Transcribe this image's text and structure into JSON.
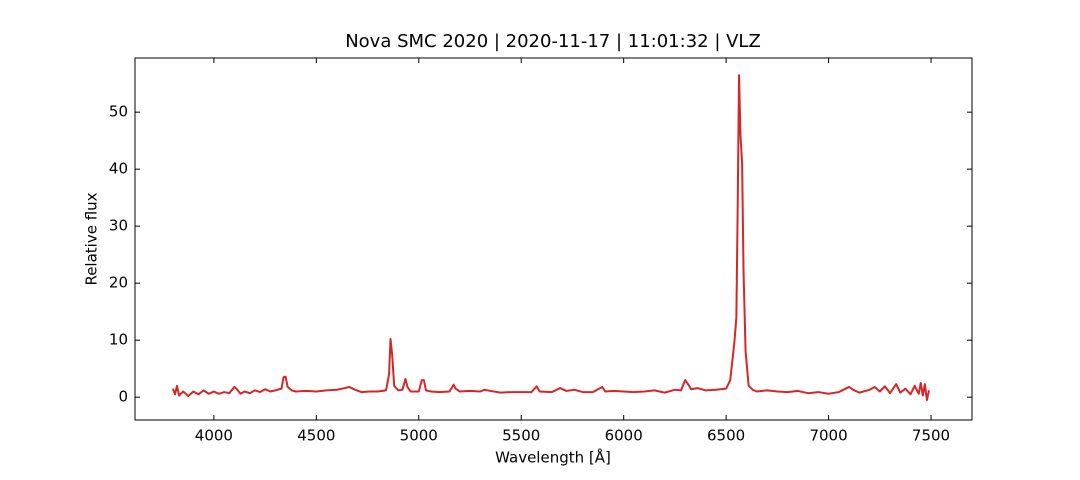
{
  "chart_data": {
    "type": "line",
    "title": "Nova SMC 2020 | 2020-11-17 | 11:01:32 | VLZ",
    "x_label": "Wavelength [Å]",
    "y_label": "Relative flux",
    "color": "#d62728",
    "xlim": [
      3615,
      7700
    ],
    "ylim": [
      -4,
      59.5
    ],
    "xticks": [
      4000,
      4500,
      5000,
      5500,
      6000,
      6500,
      7000,
      7500
    ],
    "yticks": [
      0,
      10,
      20,
      30,
      40,
      50
    ],
    "grid": false,
    "x": [
      3800,
      3810,
      3820,
      3830,
      3850,
      3875,
      3900,
      3925,
      3950,
      3975,
      4000,
      4025,
      4050,
      4075,
      4100,
      4110,
      4130,
      4150,
      4175,
      4200,
      4225,
      4250,
      4275,
      4300,
      4330,
      4340,
      4350,
      4360,
      4380,
      4400,
      4450,
      4500,
      4550,
      4600,
      4640,
      4660,
      4690,
      4720,
      4760,
      4800,
      4840,
      4855,
      4862,
      4870,
      4880,
      4900,
      4920,
      4935,
      4945,
      4960,
      5000,
      5015,
      5025,
      5035,
      5060,
      5100,
      5150,
      5170,
      5180,
      5200,
      5250,
      5300,
      5320,
      5350,
      5400,
      5450,
      5500,
      5550,
      5575,
      5590,
      5650,
      5690,
      5720,
      5760,
      5800,
      5850,
      5895,
      5910,
      5950,
      6000,
      6050,
      6100,
      6150,
      6200,
      6250,
      6280,
      6300,
      6310,
      6330,
      6360,
      6400,
      6450,
      6500,
      6520,
      6540,
      6550,
      6557,
      6563,
      6570,
      6578,
      6585,
      6595,
      6610,
      6630,
      6650,
      6700,
      6750,
      6800,
      6850,
      6900,
      6950,
      7000,
      7050,
      7100,
      7120,
      7150,
      7200,
      7225,
      7250,
      7275,
      7300,
      7330,
      7350,
      7375,
      7400,
      7420,
      7440,
      7450,
      7460,
      7470,
      7480,
      7490
    ],
    "values": [
      1.5,
      0.5,
      2.0,
      0.3,
      1.0,
      0.2,
      1.0,
      0.5,
      1.2,
      0.6,
      1.0,
      0.6,
      0.9,
      0.7,
      1.8,
      1.5,
      0.6,
      1.0,
      0.7,
      1.2,
      0.9,
      1.4,
      1.0,
      1.2,
      1.5,
      3.5,
      3.6,
      1.8,
      1.2,
      1.0,
      1.1,
      1.0,
      1.2,
      1.3,
      1.6,
      1.8,
      1.3,
      0.9,
      1.0,
      1.0,
      1.2,
      4.0,
      10.2,
      7.5,
      2.0,
      1.2,
      1.3,
      3.2,
      1.8,
      1.0,
      1.0,
      3.0,
      3.0,
      1.2,
      1.0,
      0.9,
      1.0,
      2.2,
      1.5,
      1.0,
      1.1,
      1.0,
      1.3,
      1.1,
      0.8,
      0.9,
      0.9,
      0.9,
      1.9,
      1.0,
      0.9,
      1.6,
      1.1,
      1.3,
      0.9,
      0.9,
      1.8,
      1.0,
      1.1,
      1.0,
      0.9,
      1.0,
      1.2,
      0.8,
      1.3,
      1.2,
      3.0,
      2.5,
      1.4,
      1.6,
      1.2,
      1.3,
      1.5,
      3.0,
      9.5,
      14.0,
      35,
      56.5,
      46,
      41,
      22,
      8,
      2.0,
      1.3,
      1.0,
      1.2,
      1.0,
      0.9,
      1.1,
      0.7,
      0.9,
      0.6,
      0.9,
      1.8,
      1.3,
      0.8,
      1.3,
      1.8,
      1.0,
      1.9,
      0.7,
      2.3,
      0.8,
      1.5,
      0.5,
      2.0,
      0.6,
      2.5,
      0.3,
      2.3,
      -0.5,
      1.2
    ]
  }
}
